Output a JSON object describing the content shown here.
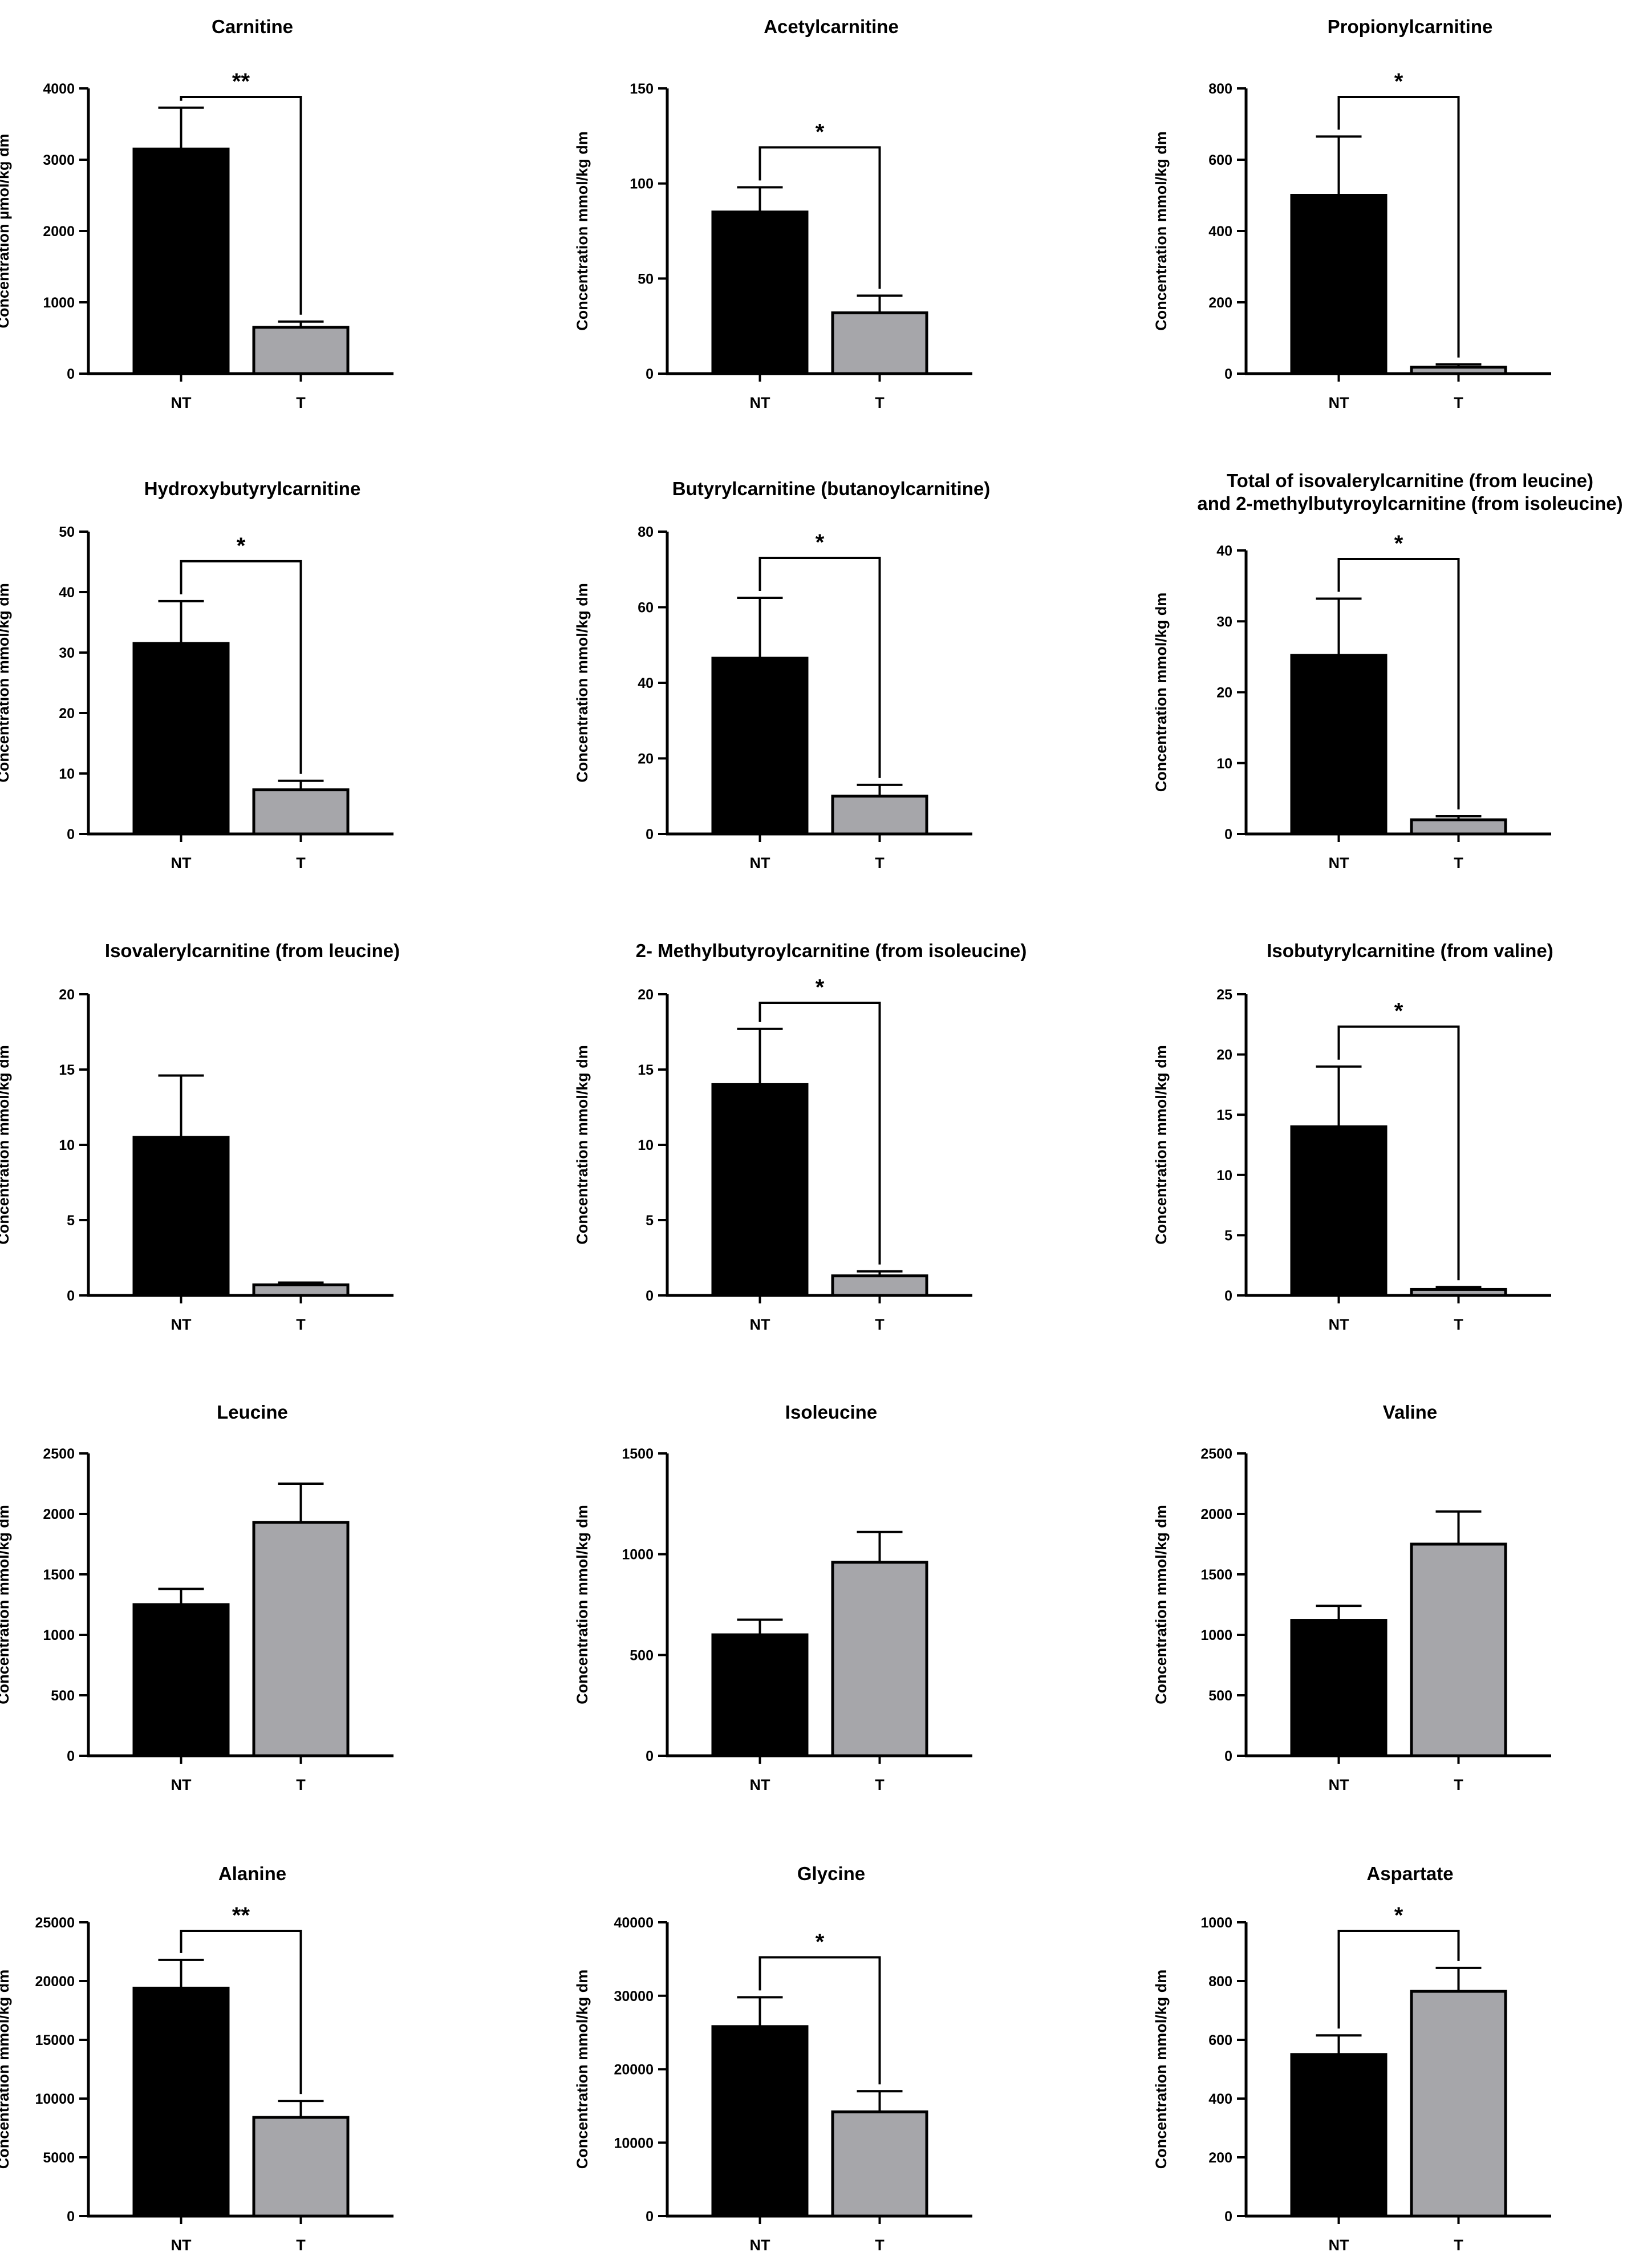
{
  "chart_data": [
    {
      "type": "bar",
      "title": [
        "Carnitine"
      ],
      "ylabel": "Concentration µmol/kg dm",
      "categories": [
        "NT",
        "T"
      ],
      "colors": [
        "#000000",
        "#a6a6aa"
      ],
      "values": [
        3150,
        650
      ],
      "errors": [
        580,
        80
      ],
      "ylim": [
        0,
        4000
      ],
      "yticks": [
        0,
        1000,
        2000,
        3000,
        4000
      ],
      "significance": "**"
    },
    {
      "type": "bar",
      "title": [
        "Acetylcarnitine"
      ],
      "ylabel": "Concentration mmol/kg dm",
      "categories": [
        "NT",
        "T"
      ],
      "colors": [
        "#000000",
        "#a6a6aa"
      ],
      "values": [
        85,
        32
      ],
      "errors": [
        13,
        9
      ],
      "ylim": [
        0,
        150
      ],
      "yticks": [
        0,
        50,
        100,
        150
      ],
      "significance": "*"
    },
    {
      "type": "bar",
      "title": [
        "Propionylcarnitine"
      ],
      "ylabel": "Concentration mmol/kg dm",
      "categories": [
        "NT",
        "T"
      ],
      "colors": [
        "#000000",
        "#a6a6aa"
      ],
      "values": [
        500,
        18
      ],
      "errors": [
        165,
        8
      ],
      "ylim": [
        0,
        800
      ],
      "yticks": [
        0,
        200,
        400,
        600,
        800
      ],
      "significance": "*"
    },
    {
      "type": "bar",
      "title": [
        "Hydroxybutyrylcarnitine"
      ],
      "ylabel": "Concentration mmol/kg dm",
      "categories": [
        "NT",
        "T"
      ],
      "colors": [
        "#000000",
        "#a6a6aa"
      ],
      "values": [
        31.5,
        7.3
      ],
      "errors": [
        7,
        1.5
      ],
      "ylim": [
        0,
        50
      ],
      "yticks": [
        0,
        10,
        20,
        30,
        40,
        50
      ],
      "significance": "*"
    },
    {
      "type": "bar",
      "title": [
        "Butyrylcarnitine (butanoylcarnitine)"
      ],
      "ylabel": "Concentration mmol/kg dm",
      "categories": [
        "NT",
        "T"
      ],
      "colors": [
        "#000000",
        "#a6a6aa"
      ],
      "values": [
        46.5,
        10
      ],
      "errors": [
        16,
        3
      ],
      "ylim": [
        0,
        80
      ],
      "yticks": [
        0,
        20,
        40,
        60,
        80
      ],
      "significance": "*"
    },
    {
      "type": "bar",
      "title": [
        "Total of isovalerylcarnitine (from leucine)",
        "and 2-methylbutyroylcarnitine (from isoleucine)"
      ],
      "ylabel": "Concentration mmol/kg dm",
      "categories": [
        "NT",
        "T"
      ],
      "colors": [
        "#000000",
        "#a6a6aa"
      ],
      "values": [
        25.2,
        2
      ],
      "errors": [
        8,
        0.5
      ],
      "ylim": [
        0,
        40
      ],
      "yticks": [
        0,
        10,
        20,
        30,
        40
      ],
      "significance": "*"
    },
    {
      "type": "bar",
      "title": [
        "Isovalerylcarnitine (from leucine)"
      ],
      "ylabel": "Concentration mmol/kg dm",
      "categories": [
        "NT",
        "T"
      ],
      "colors": [
        "#000000",
        "#a6a6aa"
      ],
      "values": [
        10.5,
        0.7
      ],
      "errors": [
        4.1,
        0.15
      ],
      "ylim": [
        0,
        20
      ],
      "yticks": [
        0,
        5,
        10,
        15,
        20
      ],
      "significance": ""
    },
    {
      "type": "bar",
      "title": [
        "2- Methylbutyroylcarnitine (from isoleucine)"
      ],
      "ylabel": "Concentration mmol/kg dm",
      "categories": [
        "NT",
        "T"
      ],
      "colors": [
        "#000000",
        "#a6a6aa"
      ],
      "values": [
        14,
        1.3
      ],
      "errors": [
        3.7,
        0.3
      ],
      "ylim": [
        0,
        20
      ],
      "yticks": [
        0,
        5,
        10,
        15,
        20
      ],
      "significance": "*"
    },
    {
      "type": "bar",
      "title": [
        "Isobutyrylcarnitine (from valine)"
      ],
      "ylabel": "Concentration mmol/kg dm",
      "categories": [
        "NT",
        "T"
      ],
      "colors": [
        "#000000",
        "#a6a6aa"
      ],
      "values": [
        14,
        0.5
      ],
      "errors": [
        5,
        0.2
      ],
      "ylim": [
        0,
        25
      ],
      "yticks": [
        0,
        5,
        10,
        15,
        20,
        25
      ],
      "significance": "*"
    },
    {
      "type": "bar",
      "title": [
        "Leucine"
      ],
      "ylabel": "Concentration mmol/kg dm",
      "categories": [
        "NT",
        "T"
      ],
      "colors": [
        "#000000",
        "#a6a6aa"
      ],
      "values": [
        1250,
        1930
      ],
      "errors": [
        130,
        320
      ],
      "ylim": [
        0,
        2500
      ],
      "yticks": [
        0,
        500,
        1000,
        1500,
        2000,
        2500
      ],
      "significance": ""
    },
    {
      "type": "bar",
      "title": [
        "Isoleucine"
      ],
      "ylabel": "Concentration mmol/kg dm",
      "categories": [
        "NT",
        "T"
      ],
      "colors": [
        "#000000",
        "#a6a6aa"
      ],
      "values": [
        600,
        960
      ],
      "errors": [
        75,
        150
      ],
      "ylim": [
        0,
        1500
      ],
      "yticks": [
        0,
        500,
        1000,
        1500
      ],
      "significance": ""
    },
    {
      "type": "bar",
      "title": [
        "Valine"
      ],
      "ylabel": "Concentration mmol/kg dm",
      "categories": [
        "NT",
        "T"
      ],
      "colors": [
        "#000000",
        "#a6a6aa"
      ],
      "values": [
        1120,
        1750
      ],
      "errors": [
        120,
        270
      ],
      "ylim": [
        0,
        2500
      ],
      "yticks": [
        0,
        500,
        1000,
        1500,
        2000,
        2500
      ],
      "significance": ""
    },
    {
      "type": "bar",
      "title": [
        "Alanine"
      ],
      "ylabel": "Concentration mmol/kg dm",
      "categories": [
        "NT",
        "T"
      ],
      "colors": [
        "#000000",
        "#a6a6aa"
      ],
      "values": [
        19400,
        8400
      ],
      "errors": [
        2400,
        1400
      ],
      "ylim": [
        0,
        25000
      ],
      "yticks": [
        0,
        5000,
        10000,
        15000,
        20000,
        25000
      ],
      "significance": "**"
    },
    {
      "type": "bar",
      "title": [
        "Glycine"
      ],
      "ylabel": "Concentration mmol/kg dm",
      "categories": [
        "NT",
        "T"
      ],
      "colors": [
        "#000000",
        "#a6a6aa"
      ],
      "values": [
        25800,
        14200
      ],
      "errors": [
        4000,
        2800
      ],
      "ylim": [
        0,
        40000
      ],
      "yticks": [
        0,
        10000,
        20000,
        30000,
        40000
      ],
      "significance": "*"
    },
    {
      "type": "bar",
      "title": [
        "Aspartate"
      ],
      "ylabel": "Concentration mmol/kg dm",
      "categories": [
        "NT",
        "T"
      ],
      "colors": [
        "#000000",
        "#a6a6aa"
      ],
      "values": [
        550,
        765
      ],
      "errors": [
        65,
        80
      ],
      "ylim": [
        0,
        1000
      ],
      "yticks": [
        0,
        200,
        400,
        600,
        800,
        1000
      ],
      "significance": "*"
    }
  ]
}
